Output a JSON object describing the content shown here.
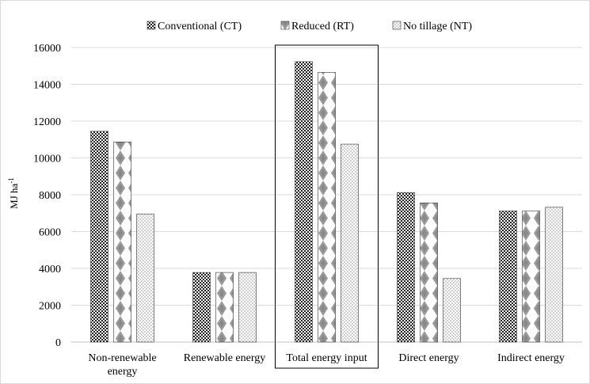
{
  "chart_data": {
    "type": "bar",
    "title": "",
    "xlabel": "",
    "ylabel": "MJ ha",
    "ylabel_superscript": "-1",
    "ylim": [
      0,
      16000
    ],
    "yticks": [
      "0",
      "2000",
      "4000",
      "6000",
      "8000",
      "10000",
      "12000",
      "14000",
      "16000"
    ],
    "grid": true,
    "legend_position": "top",
    "categories": [
      [
        "Non-renewable",
        "energy"
      ],
      [
        "Renewable energy"
      ],
      [
        "Total energy input"
      ],
      [
        "Direct energy"
      ],
      [
        "Indirect energy"
      ]
    ],
    "highlighted_category": "Total energy input",
    "series": [
      {
        "name": "Conventional (CT)",
        "pattern": "checker-dark",
        "values": [
          11450,
          3780,
          15230,
          8120,
          7120
        ]
      },
      {
        "name": "Reduced (RT)",
        "pattern": "diamond",
        "values": [
          10870,
          3780,
          14650,
          7560,
          7120
        ]
      },
      {
        "name": "No tillage (NT)",
        "pattern": "checker-light",
        "values": [
          6960,
          3780,
          10750,
          3450,
          7320
        ]
      }
    ]
  }
}
